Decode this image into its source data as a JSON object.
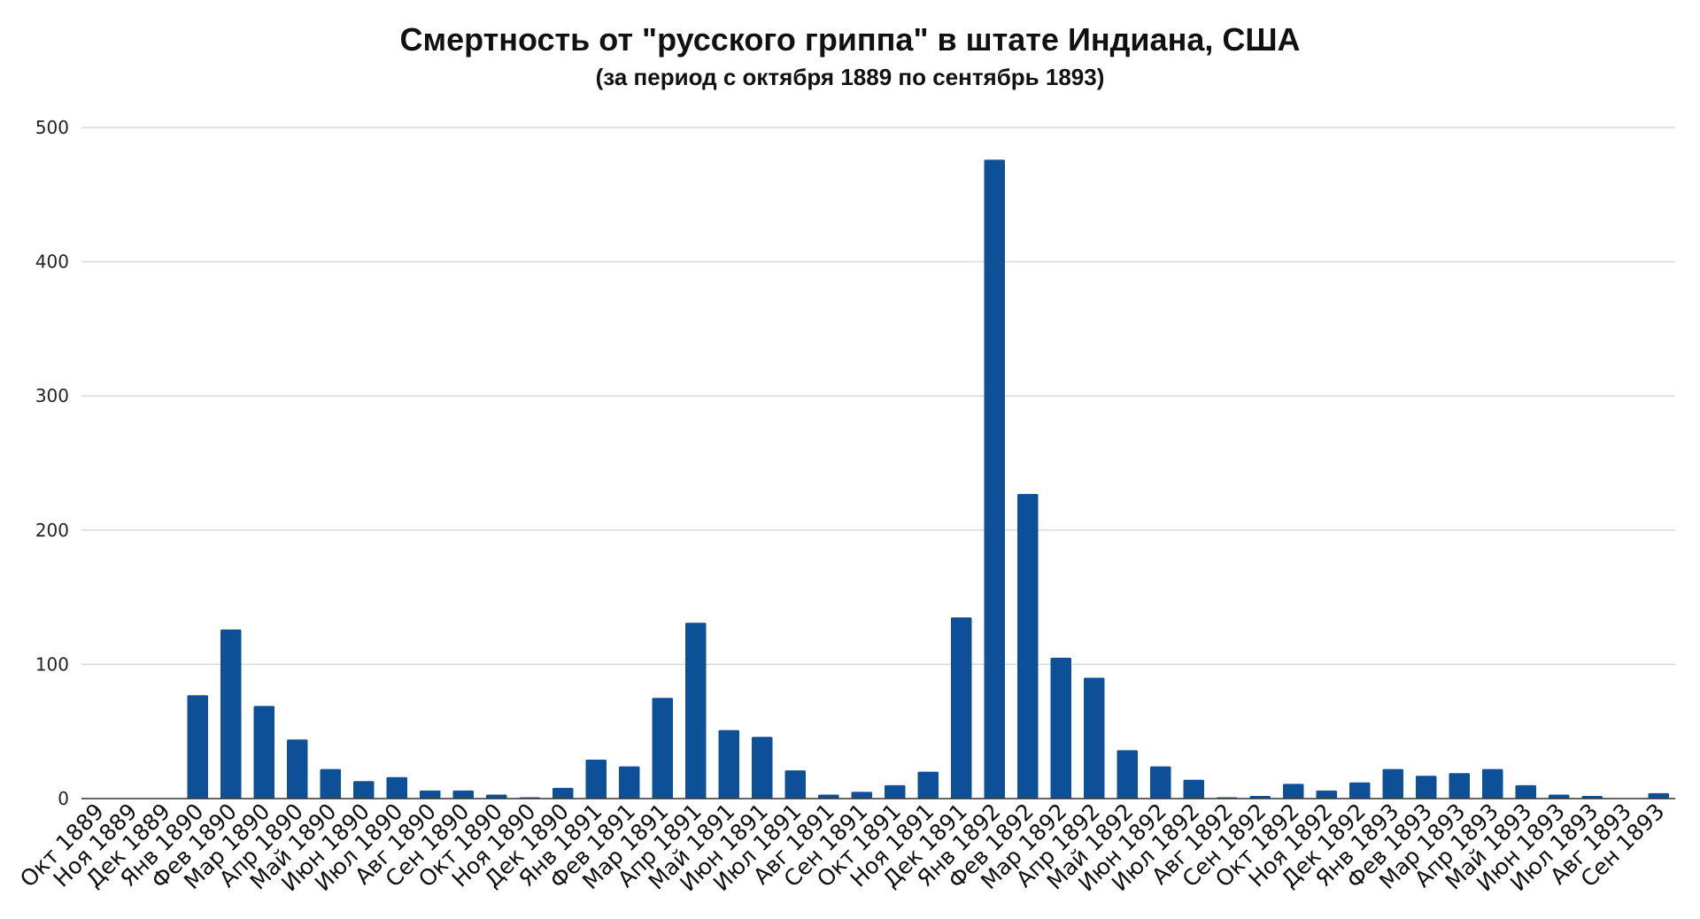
{
  "chart_data": {
    "type": "bar",
    "title": "Смертность от \"русского гриппа\" в штате Индиана, США",
    "subtitle": "(за период с октября 1889 по сентябрь 1893)",
    "xlabel": "",
    "ylabel": "",
    "ylim": [
      0,
      500
    ],
    "yticks": [
      "0",
      "100",
      "200",
      "300",
      "400",
      "500"
    ],
    "grid": true,
    "legend": "none",
    "bar_color": "#0e5098",
    "grid_color": "#d9d9d9",
    "categories": [
      "Окт 1889",
      "Ноя 1889",
      "Дек 1889",
      "Янв 1890",
      "Фев 1890",
      "Мар 1890",
      "Апр 1890",
      "Май 1890",
      "Июн 1890",
      "Июл 1890",
      "Авг 1890",
      "Сен 1890",
      "Окт 1890",
      "Ноя 1890",
      "Дек 1890",
      "Янв 1891",
      "Фев 1891",
      "Мар 1891",
      "Апр 1891",
      "Май 1891",
      "Июн 1891",
      "Июл 1891",
      "Авг 1891",
      "Сен 1891",
      "Окт 1891",
      "Ноя 1891",
      "Дек 1891",
      "Янв 1892",
      "Фев 1892",
      "Мар 1892",
      "Апр 1892",
      "Май 1892",
      "Июн 1892",
      "Июл 1892",
      "Авг 1892",
      "Сен 1892",
      "Окт 1892",
      "Ноя 1892",
      "Дек 1892",
      "Янв 1893",
      "Фев 1893",
      "Мар 1893",
      "Апр 1893",
      "Май 1893",
      "Июн 1893",
      "Июл 1893",
      "Авг 1893",
      "Сен 1893"
    ],
    "values": [
      0,
      0,
      0,
      77,
      126,
      69,
      44,
      22,
      13,
      16,
      6,
      6,
      3,
      1,
      8,
      29,
      24,
      75,
      131,
      51,
      46,
      21,
      3,
      5,
      10,
      20,
      135,
      476,
      227,
      105,
      90,
      36,
      24,
      14,
      1,
      2,
      11,
      6,
      12,
      22,
      17,
      19,
      22,
      10,
      3,
      2,
      0,
      4
    ]
  }
}
